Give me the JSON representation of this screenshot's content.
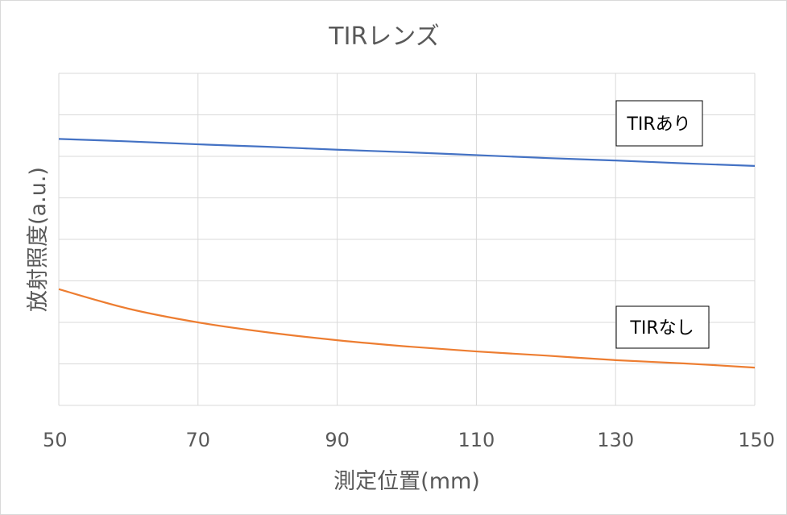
{
  "chart_data": {
    "type": "line",
    "title": "TIRレンズ",
    "xlabel": "測定位置(mm)",
    "ylabel": "放射照度(a.u.)",
    "xlim": [
      50,
      150
    ],
    "ylim": [
      0,
      8
    ],
    "x_ticks": [
      "50",
      "70",
      "90",
      "110",
      "130",
      "150"
    ],
    "y_tick_labels_visible": false,
    "grid": true,
    "legend": "none",
    "x": [
      50,
      60,
      70,
      80,
      90,
      100,
      110,
      120,
      130,
      140,
      150
    ],
    "series": [
      {
        "name": "TIRあり",
        "color": "#4472c4",
        "values": [
          6.42,
          6.36,
          6.29,
          6.23,
          6.16,
          6.1,
          6.03,
          5.96,
          5.9,
          5.83,
          5.77
        ]
      },
      {
        "name": "TIRなし",
        "color": "#ed7d31",
        "values": [
          2.8,
          2.33,
          2.0,
          1.76,
          1.57,
          1.42,
          1.3,
          1.2,
          1.09,
          1.01,
          0.91
        ]
      }
    ],
    "annotations": [
      {
        "text": "TIRあり",
        "series": 0
      },
      {
        "text": "TIRなし",
        "series": 1
      }
    ]
  }
}
